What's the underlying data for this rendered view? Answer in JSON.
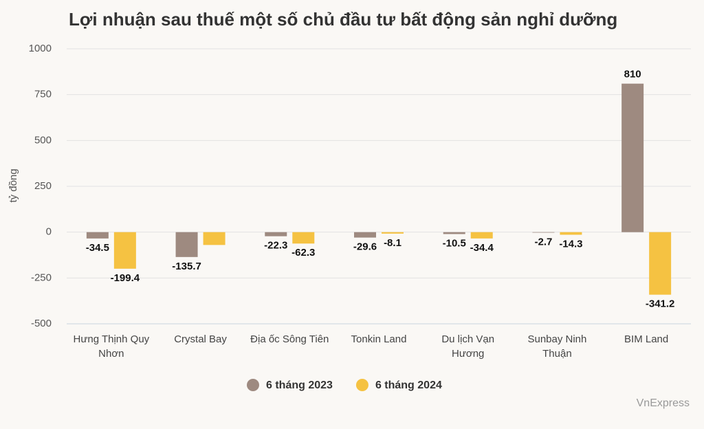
{
  "chart_data": {
    "type": "bar",
    "title": "Lợi nhuận sau thuế một số chủ đầu tư bất động sản nghỉ dưỡng",
    "y_label": "tỷ đồng",
    "source": "VnExpress",
    "categories": [
      "Hưng Thịnh Quy Nhơn",
      "Crystal Bay",
      "Địa ốc Sông Tiên",
      "Tonkin Land",
      "Du lịch Vạn Hương",
      "Sunbay Ninh Thuận",
      "BIM Land"
    ],
    "series": [
      {
        "name": "6 tháng 2023",
        "color": "#9e8a80",
        "values": [
          -34.5,
          -135.7,
          -22.3,
          -29.6,
          -10.5,
          -2.7,
          810
        ],
        "value_labels": [
          "-34.5",
          "-135.7",
          "-22.3",
          "-29.6",
          "-10.5",
          "-2.7",
          "810"
        ]
      },
      {
        "name": "6 tháng 2024",
        "color": "#f5c242",
        "values": [
          -199.4,
          -70,
          -62.3,
          -8.1,
          -34.4,
          -14.3,
          -341.2
        ],
        "value_labels": [
          "-199.4",
          null,
          "-62.3",
          "-8.1",
          "-34.4",
          "-14.3",
          "-341.2"
        ]
      }
    ],
    "ylim": [
      -500,
      1000
    ],
    "yticks": [
      -500,
      -250,
      0,
      250,
      500,
      750,
      1000
    ],
    "grid": true,
    "legend": "bottom"
  }
}
